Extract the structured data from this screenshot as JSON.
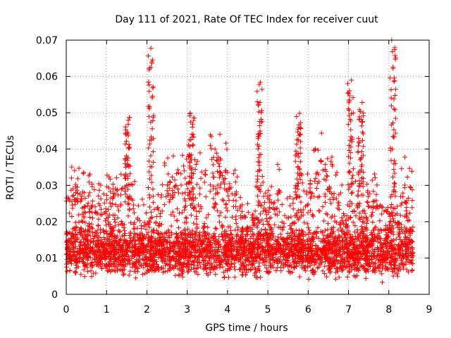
{
  "chart_data": {
    "type": "scatter",
    "title": "Day 111 of 2021, Rate Of TEC Index for receiver cuut",
    "xlabel": "GPS time / hours",
    "ylabel": "ROTI / TECUs",
    "xlim": [
      0,
      9
    ],
    "ylim": [
      0,
      0.07
    ],
    "x_ticks": [
      "0",
      "1",
      "2",
      "3",
      "4",
      "5",
      "6",
      "7",
      "8",
      "9"
    ],
    "y_ticks": [
      "0",
      "0.01",
      "0.02",
      "0.03",
      "0.04",
      "0.05",
      "0.06",
      "0.07"
    ],
    "grid": true,
    "marker": "+",
    "series": [
      {
        "name": "ROTI",
        "color": "#ff0000",
        "baseline": 0.012,
        "x_range": [
          0,
          8.6
        ],
        "approx_count": 4000,
        "peaks": [
          {
            "x": 1.52,
            "y": 0.048
          },
          {
            "x": 2.1,
            "y": 0.067
          },
          {
            "x": 3.1,
            "y": 0.05
          },
          {
            "x": 4.8,
            "y": 0.057
          },
          {
            "x": 5.75,
            "y": 0.049
          },
          {
            "x": 7.05,
            "y": 0.059
          },
          {
            "x": 7.3,
            "y": 0.052
          },
          {
            "x": 8.1,
            "y": 0.07
          }
        ]
      }
    ]
  }
}
